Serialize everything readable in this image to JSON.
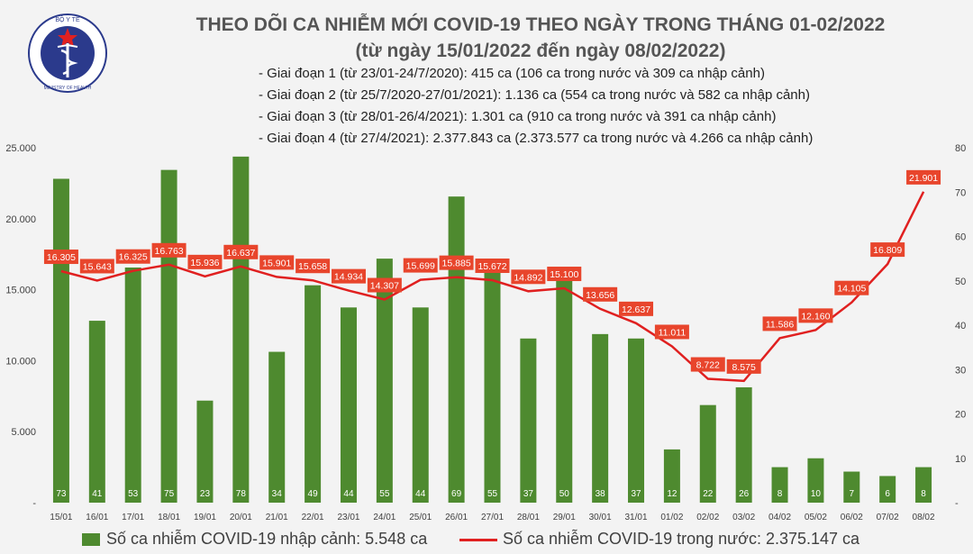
{
  "title_line1": "THEO DÕI CA NHIỄM MỚI COVID-19 THEO NGÀY TRONG THÁNG 01-02/2022",
  "title_line2": "(từ ngày 15/01/2022 đến ngày 08/02/2022)",
  "logo": {
    "text_top": "BỘ Y TẾ",
    "text_bottom": "MINISTRY OF HEALTH",
    "icon": "caduceus-icon"
  },
  "phases": [
    "- Giai đoạn 1 (từ 23/01-24/7/2020): 415 ca (106 ca trong nước và 309 ca nhập cảnh)",
    "- Giai đoạn 2 (từ 25/7/2020-27/01/2021): 1.136 ca (554 ca trong nước và 582 ca nhập cảnh)",
    "- Giai đoạn 3 (từ 28/01-26/4/2021): 1.301 ca (910 ca trong nước và 391 ca nhập cảnh)",
    "- Giai đoạn 4 (từ 27/4/2021): 2.377.843 ca (2.373.577 ca trong nước và 4.266 ca nhập cảnh)"
  ],
  "legend": {
    "bar": "Số ca nhiễm COVID-19 nhập cảnh: 5.548 ca",
    "line": "Số ca nhiễm COVID-19 trong nước: 2.375.147 ca"
  },
  "colors": {
    "bar": "#4e8a2f",
    "line": "#e02020",
    "label_box": "#e8452c",
    "background": "#f3f3f3"
  },
  "chart_data": {
    "type": "bar",
    "categories": [
      "15/01",
      "16/01",
      "17/01",
      "18/01",
      "19/01",
      "20/01",
      "21/01",
      "22/01",
      "23/01",
      "24/01",
      "25/01",
      "26/01",
      "27/01",
      "28/01",
      "29/01",
      "30/01",
      "31/01",
      "01/02",
      "02/02",
      "03/02",
      "04/02",
      "05/02",
      "06/02",
      "07/02",
      "08/02"
    ],
    "series": [
      {
        "name": "Số ca nhiễm COVID-19 nhập cảnh: 5.548 ca",
        "type": "bar",
        "axis": "right",
        "values": [
          73,
          41,
          53,
          75,
          23,
          78,
          34,
          49,
          44,
          55,
          44,
          69,
          55,
          37,
          50,
          38,
          37,
          12,
          22,
          26,
          8,
          10,
          7,
          6,
          8
        ],
        "labels": [
          "73",
          "41",
          "53",
          "75",
          "23",
          "78",
          "34",
          "49",
          "44",
          "55",
          "44",
          "69",
          "55",
          "37",
          "50",
          "38",
          "37",
          "12",
          "22",
          "26",
          "8",
          "10",
          "7",
          "6",
          "8"
        ]
      },
      {
        "name": "Số ca nhiễm COVID-19 trong nước: 2.375.147 ca",
        "type": "line",
        "axis": "left",
        "values": [
          16305,
          15643,
          16325,
          16763,
          15936,
          16637,
          15901,
          15658,
          14934,
          14307,
          15699,
          15885,
          15672,
          14892,
          15100,
          13656,
          12637,
          11011,
          8722,
          8575,
          11586,
          12160,
          14105,
          16809,
          21901
        ],
        "labels": [
          "16.305",
          "15.643",
          "16.325",
          "16.763",
          "15.936",
          "16.637",
          "15.901",
          "15.658",
          "14.934",
          "14.307",
          "15.699",
          "15.885",
          "15.672",
          "14.892",
          "15.100",
          "13.656",
          "12.637",
          "11.011",
          "8.722",
          "8.575",
          "11.586",
          "12.160",
          "14.105",
          "16.809",
          "21.901"
        ]
      }
    ],
    "y_left": {
      "lim": [
        0,
        25000
      ],
      "ticks": [
        "-",
        "5.000",
        "10.000",
        "15.000",
        "20.000",
        "25.000"
      ]
    },
    "y_right": {
      "lim": [
        0,
        80
      ],
      "ticks": [
        "-",
        "10",
        "20",
        "30",
        "40",
        "50",
        "60",
        "70",
        "80"
      ]
    },
    "grid": false,
    "legend_position": "bottom"
  }
}
